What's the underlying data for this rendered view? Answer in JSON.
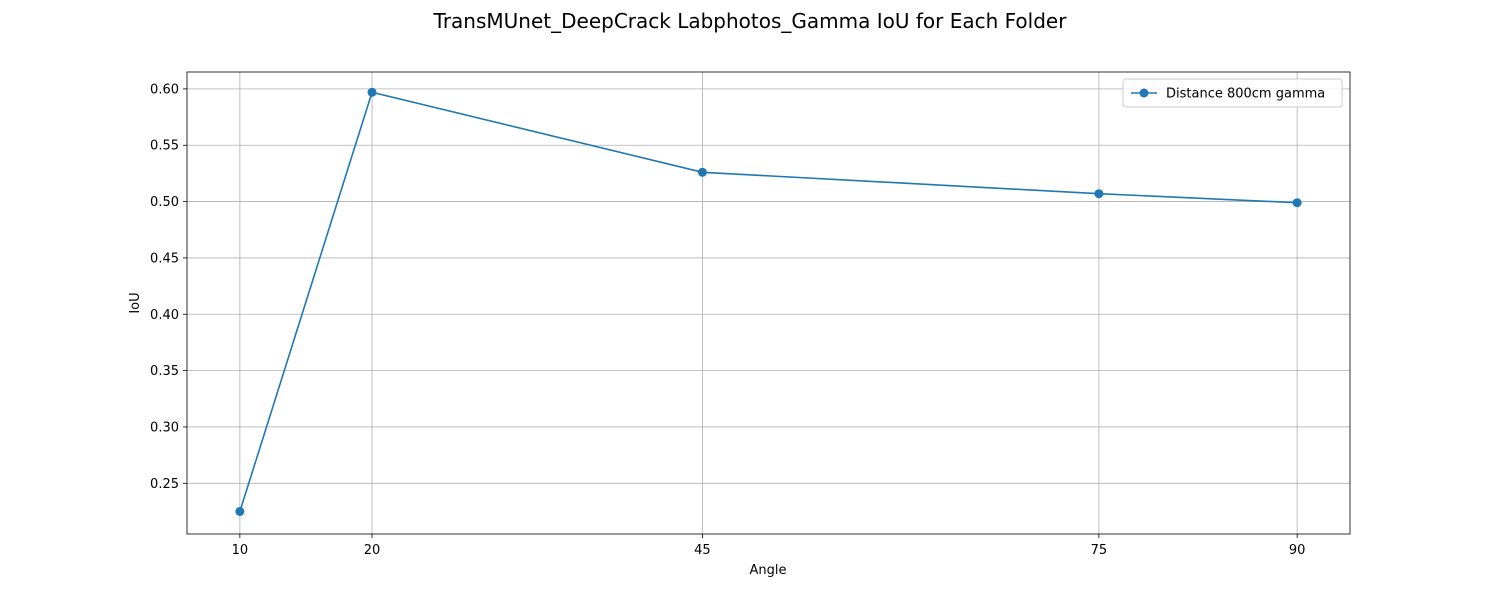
{
  "chart_data": {
    "type": "line",
    "title": "TransMUnet_DeepCrack Labphotos_Gamma IoU for Each Folder",
    "xlabel": "Angle",
    "ylabel": "IoU",
    "x": [
      10,
      20,
      45,
      75,
      90
    ],
    "xticks": [
      "10",
      "20",
      "45",
      "75",
      "90"
    ],
    "xlim": [
      6,
      94
    ],
    "ylim": [
      0.205,
      0.615
    ],
    "yticks": [
      0.25,
      0.3,
      0.35,
      0.4,
      0.45,
      0.5,
      0.55,
      0.6
    ],
    "ytick_labels": [
      "0.25",
      "0.30",
      "0.35",
      "0.40",
      "0.45",
      "0.50",
      "0.55",
      "0.60"
    ],
    "grid": true,
    "legend_position": "top-right",
    "series": [
      {
        "name": "Distance 800cm gamma",
        "color": "#1f77b4",
        "marker": "circle",
        "values": [
          0.225,
          0.597,
          0.526,
          0.507,
          0.499
        ]
      }
    ]
  }
}
